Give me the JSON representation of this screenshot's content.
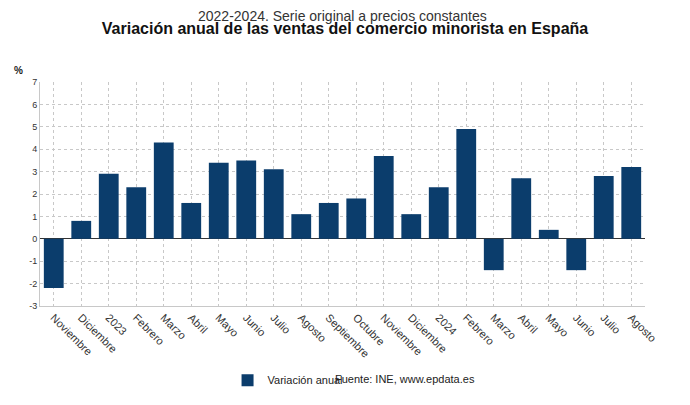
{
  "chart_data": {
    "type": "bar",
    "title": "Variación anual de las ventas del comercio minorista en España",
    "subtitle": "2022-2024. Serie original a precios constantes",
    "y_label": "%",
    "categories": [
      "Noviembre",
      "Diciembre",
      "2023",
      "Febrero",
      "Marzo",
      "Abril",
      "Mayo",
      "Junio",
      "Julio",
      "Agosto",
      "Septiembre",
      "Octubre",
      "Noviembre",
      "Diciembre",
      "2024",
      "Febrero",
      "Marzo",
      "Abril",
      "Mayo",
      "Junio",
      "Julio",
      "Agosto"
    ],
    "series": [
      {
        "name": "Variación anual",
        "color": "#0b3d6c",
        "values": [
          -2.2,
          0.8,
          2.9,
          2.3,
          4.3,
          1.6,
          3.4,
          3.5,
          3.1,
          1.1,
          1.6,
          1.8,
          3.7,
          1.1,
          2.3,
          4.9,
          -1.4,
          2.7,
          0.4,
          -1.4,
          2.8,
          3.2
        ]
      }
    ],
    "ylim": [
      -3,
      7
    ],
    "yticks": [
      -3,
      -2,
      -1,
      0,
      1,
      2,
      3,
      4,
      5,
      6,
      7
    ],
    "grid": true,
    "legend": "bottom",
    "annotations": [
      "Fuente: INE, www.epdata.es"
    ]
  }
}
